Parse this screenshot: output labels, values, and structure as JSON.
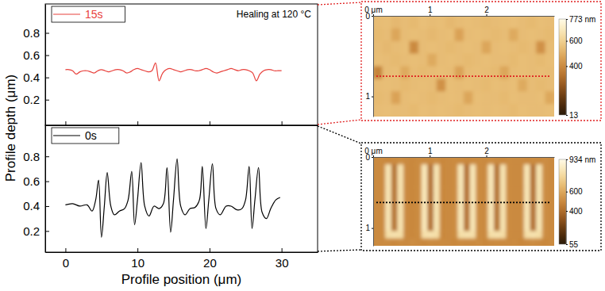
{
  "chart_data": [
    {
      "type": "line",
      "annotation": "Healing at 120 °C",
      "x": [
        0,
        0.5,
        1,
        1.5,
        2,
        2.5,
        3,
        3.5,
        4,
        4.5,
        5,
        5.5,
        6,
        6.5,
        7,
        7.5,
        8,
        8.5,
        9,
        9.5,
        10,
        10.5,
        11,
        11.5,
        12,
        12.5,
        13,
        13.5,
        14,
        14.5,
        15,
        15.5,
        16,
        16.5,
        17,
        17.5,
        18,
        18.5,
        19,
        19.5,
        20,
        20.5,
        21,
        21.5,
        22,
        22.5,
        23,
        23.5,
        24,
        24.5,
        25,
        25.5,
        26,
        26.5,
        27,
        27.5,
        28,
        28.5,
        29,
        29.5,
        30
      ],
      "series": [
        {
          "name": "15s",
          "color": "#e8413c",
          "values": [
            0.47,
            0.47,
            0.46,
            0.43,
            0.45,
            0.46,
            0.46,
            0.45,
            0.44,
            0.46,
            0.47,
            0.46,
            0.45,
            0.46,
            0.47,
            0.47,
            0.46,
            0.44,
            0.45,
            0.47,
            0.48,
            0.47,
            0.46,
            0.45,
            0.46,
            0.53,
            0.37,
            0.44,
            0.47,
            0.48,
            0.47,
            0.46,
            0.45,
            0.46,
            0.47,
            0.47,
            0.46,
            0.46,
            0.47,
            0.48,
            0.47,
            0.45,
            0.44,
            0.45,
            0.46,
            0.47,
            0.48,
            0.47,
            0.46,
            0.47,
            0.47,
            0.46,
            0.44,
            0.37,
            0.43,
            0.46,
            0.47,
            0.47,
            0.46,
            0.46,
            0.46
          ]
        }
      ],
      "xlim": [
        -2.8,
        35
      ],
      "ylim": [
        -0.03,
        1.06
      ],
      "xticks": [
        0,
        10,
        20,
        30
      ],
      "yticks": [
        0.2,
        0.4,
        0.6,
        0.8
      ],
      "legend": "upper left",
      "tick_labels": "y"
    },
    {
      "type": "line",
      "xlabel": "Profile position (μm)",
      "ylabel": "Profile depth (μm)",
      "x": [
        0,
        1,
        2,
        3,
        3.7,
        4.2,
        4.6,
        5,
        5.4,
        5.8,
        6.3,
        6.8,
        7.5,
        8.2,
        8.7,
        9.2,
        9.6,
        10,
        10.5,
        11,
        11.6,
        12.3,
        13,
        13.6,
        14.1,
        14.6,
        15,
        15.5,
        16,
        16.6,
        17.3,
        18,
        18.6,
        19,
        19.5,
        19.9,
        20.4,
        20.9,
        21.5,
        22.3,
        23,
        23.8,
        24.5,
        25,
        25.5,
        25.9,
        26.3,
        26.8,
        27.3,
        27.9,
        28.5,
        29.2,
        29.8
      ],
      "series": [
        {
          "name": "0s",
          "color": "#000000",
          "values": [
            0.41,
            0.42,
            0.4,
            0.41,
            0.36,
            0.45,
            0.61,
            0.15,
            0.4,
            0.67,
            0.4,
            0.33,
            0.36,
            0.38,
            0.45,
            0.68,
            0.25,
            0.45,
            0.75,
            0.4,
            0.32,
            0.4,
            0.38,
            0.42,
            0.71,
            0.19,
            0.45,
            0.78,
            0.4,
            0.33,
            0.38,
            0.39,
            0.45,
            0.72,
            0.22,
            0.45,
            0.74,
            0.38,
            0.33,
            0.4,
            0.4,
            0.37,
            0.38,
            0.45,
            0.72,
            0.22,
            0.45,
            0.71,
            0.35,
            0.3,
            0.38,
            0.45,
            0.47
          ]
        }
      ],
      "xlim": [
        -2.8,
        35
      ],
      "ylim": [
        0.03,
        1.05
      ],
      "xticks": [
        0,
        10,
        20,
        30
      ],
      "yticks": [
        0.2,
        0.4,
        0.6,
        0.8
      ],
      "legend": "upper left",
      "tick_labels": true
    },
    {
      "type": "heatmap",
      "xlim": [
        0,
        3.2
      ],
      "ylim": [
        0,
        1.25
      ],
      "xticks": [
        {
          "value": 0,
          "label": "0 μm"
        },
        1,
        2
      ],
      "yticks": [
        0,
        1
      ],
      "color_range": [
        13,
        773
      ],
      "color_ticks": [
        {
          "value": 773,
          "label": "773 nm"
        },
        600,
        400,
        13
      ],
      "profile_line": {
        "y": 0.75,
        "color": "#e02020"
      },
      "cells": [
        [
          540,
          545,
          530,
          540,
          535,
          550,
          540,
          545,
          530,
          540,
          545,
          540,
          535,
          540,
          545,
          550,
          540,
          535,
          545,
          540
        ],
        [
          535,
          540,
          480,
          540,
          545,
          540,
          530,
          540,
          545,
          470,
          540,
          545,
          540,
          535,
          540,
          490,
          540,
          545,
          540,
          535
        ],
        [
          540,
          530,
          540,
          545,
          400,
          540,
          545,
          540,
          535,
          540,
          545,
          540,
          480,
          540,
          545,
          540,
          535,
          540,
          420,
          540
        ],
        [
          545,
          540,
          535,
          540,
          545,
          540,
          490,
          540,
          545,
          540,
          535,
          540,
          545,
          540,
          540,
          535,
          545,
          540,
          535,
          545
        ],
        [
          380,
          540,
          545,
          490,
          540,
          535,
          540,
          545,
          540,
          470,
          540,
          545,
          540,
          535,
          480,
          540,
          545,
          540,
          545,
          540
        ],
        [
          540,
          545,
          540,
          535,
          540,
          545,
          540,
          420,
          545,
          540,
          545,
          540,
          535,
          545,
          540,
          545,
          490,
          540,
          535,
          540
        ],
        [
          535,
          540,
          470,
          540,
          545,
          540,
          535,
          540,
          545,
          540,
          480,
          545,
          540,
          540,
          535,
          545,
          540,
          540,
          545,
          485
        ],
        [
          540,
          545,
          540,
          540,
          535,
          545,
          540,
          545,
          540,
          535,
          540,
          545,
          540,
          545,
          540,
          535,
          545,
          540,
          540,
          545
        ]
      ]
    },
    {
      "type": "heatmap",
      "xlim": [
        0,
        3.2
      ],
      "ylim": [
        0,
        1.25
      ],
      "xticks": [
        {
          "value": 0,
          "label": "0 μm"
        },
        1,
        2
      ],
      "yticks": [
        0,
        1
      ],
      "color_range": [
        55,
        934
      ],
      "color_ticks": [
        {
          "value": 934,
          "label": "934 nm"
        },
        600,
        400,
        55
      ],
      "profile_line": {
        "y": 0.64,
        "color": "#000000"
      },
      "cells": [
        [
          500,
          505,
          495,
          500,
          510,
          500,
          495,
          505,
          500,
          500,
          510,
          495,
          500,
          505,
          500,
          495,
          500,
          505,
          500,
          510,
          500,
          495,
          505,
          500,
          500,
          495,
          505,
          500,
          510,
          500
        ],
        [
          500,
          505,
          820,
          420,
          810,
          500,
          495,
          505,
          830,
          410,
          815,
          495,
          500,
          505,
          825,
          415,
          820,
          505,
          500,
          830,
          420,
          810,
          505,
          500,
          500,
          820,
          410,
          815,
          510,
          500
        ],
        [
          500,
          505,
          820,
          420,
          810,
          500,
          495,
          505,
          830,
          410,
          815,
          495,
          500,
          505,
          825,
          415,
          820,
          505,
          500,
          830,
          420,
          810,
          505,
          500,
          500,
          820,
          410,
          815,
          510,
          500
        ],
        [
          500,
          505,
          820,
          420,
          810,
          500,
          495,
          505,
          830,
          410,
          815,
          495,
          500,
          505,
          825,
          415,
          820,
          505,
          500,
          830,
          420,
          810,
          505,
          500,
          500,
          820,
          410,
          815,
          510,
          500
        ],
        [
          500,
          505,
          820,
          420,
          810,
          500,
          495,
          505,
          830,
          410,
          815,
          495,
          500,
          505,
          825,
          415,
          820,
          505,
          500,
          830,
          420,
          810,
          505,
          500,
          500,
          820,
          410,
          815,
          510,
          500
        ],
        [
          500,
          505,
          820,
          420,
          810,
          500,
          495,
          505,
          830,
          410,
          815,
          495,
          500,
          505,
          825,
          415,
          820,
          505,
          500,
          830,
          420,
          810,
          505,
          500,
          500,
          820,
          410,
          815,
          510,
          500
        ],
        [
          500,
          505,
          820,
          420,
          810,
          500,
          495,
          505,
          830,
          410,
          815,
          495,
          500,
          505,
          825,
          415,
          820,
          505,
          500,
          830,
          420,
          810,
          505,
          500,
          500,
          820,
          410,
          815,
          510,
          500
        ],
        [
          500,
          505,
          820,
          420,
          810,
          500,
          495,
          505,
          830,
          410,
          815,
          495,
          500,
          505,
          825,
          415,
          820,
          505,
          500,
          830,
          420,
          810,
          505,
          500,
          500,
          820,
          410,
          815,
          510,
          500
        ],
        [
          500,
          505,
          820,
          420,
          810,
          500,
          495,
          505,
          830,
          410,
          815,
          495,
          500,
          505,
          825,
          415,
          820,
          505,
          500,
          830,
          420,
          810,
          505,
          500,
          500,
          820,
          410,
          815,
          510,
          500
        ],
        [
          500,
          505,
          820,
          420,
          810,
          500,
          495,
          505,
          830,
          410,
          815,
          495,
          500,
          505,
          825,
          415,
          820,
          505,
          500,
          830,
          420,
          810,
          505,
          500,
          500,
          820,
          410,
          815,
          510,
          500
        ],
        [
          500,
          505,
          790,
          800,
          790,
          500,
          495,
          505,
          795,
          805,
          790,
          495,
          500,
          505,
          790,
          800,
          795,
          505,
          500,
          790,
          800,
          785,
          505,
          500,
          500,
          790,
          805,
          790,
          510,
          500
        ],
        [
          505,
          500,
          500,
          495,
          505,
          500,
          510,
          500,
          495,
          505,
          500,
          505,
          500,
          495,
          505,
          500,
          500,
          510,
          495,
          500,
          505,
          500,
          500,
          505,
          495,
          500,
          510,
          500,
          495,
          505
        ]
      ]
    }
  ]
}
